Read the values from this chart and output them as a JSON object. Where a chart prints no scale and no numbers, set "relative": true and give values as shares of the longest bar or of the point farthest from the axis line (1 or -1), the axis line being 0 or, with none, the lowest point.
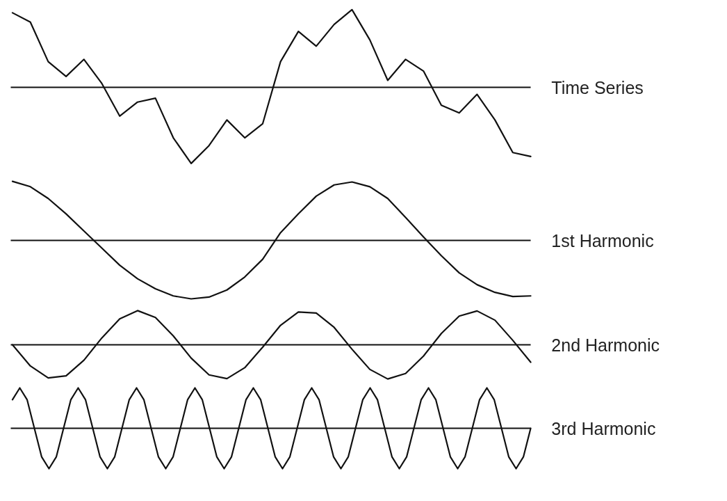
{
  "chart_data": [
    {
      "type": "line",
      "relative": true,
      "tick_labels": false,
      "categories": [
        null,
        null,
        null,
        null,
        null,
        null,
        null,
        null,
        null,
        null,
        null,
        null,
        null,
        null,
        null,
        null,
        null,
        null,
        null,
        null,
        null,
        null,
        null,
        null,
        null,
        null,
        null,
        null,
        null,
        null
      ],
      "series": [
        {
          "name": "Time Series",
          "color": "#111111",
          "values": [
            0.96,
            0.84,
            0.33,
            0.14,
            0.36,
            0.05,
            -0.37,
            -0.19,
            -0.14,
            -0.65,
            -0.98,
            -0.75,
            -0.42,
            -0.65,
            -0.47,
            0.33,
            0.72,
            0.53,
            0.81,
            1.0,
            0.61,
            0.09,
            0.36,
            0.21,
            -0.23,
            -0.33,
            -0.09,
            -0.42,
            -0.84,
            -0.89
          ]
        }
      ]
    },
    {
      "type": "line",
      "relative": true,
      "tick_labels": false,
      "categories": [
        null,
        null,
        null,
        null,
        null,
        null,
        null,
        null,
        null,
        null,
        null,
        null,
        null,
        null,
        null,
        null,
        null,
        null,
        null,
        null,
        null,
        null,
        null,
        null,
        null,
        null,
        null,
        null,
        null,
        null
      ],
      "series": [
        {
          "name": "1st Harmonic",
          "color": "#111111",
          "values": [
            1.0,
            0.91,
            0.71,
            0.45,
            0.16,
            -0.13,
            -0.42,
            -0.65,
            -0.82,
            -0.94,
            -0.99,
            -0.96,
            -0.84,
            -0.62,
            -0.32,
            0.13,
            0.45,
            0.75,
            0.94,
            0.99,
            0.91,
            0.71,
            0.39,
            0.06,
            -0.26,
            -0.55,
            -0.75,
            -0.88,
            -0.95,
            -0.94
          ]
        }
      ]
    },
    {
      "type": "line",
      "relative": true,
      "tick_labels": false,
      "categories": [
        null,
        null,
        null,
        null,
        null,
        null,
        null,
        null,
        null,
        null,
        null,
        null,
        null,
        null,
        null,
        null,
        null,
        null,
        null,
        null,
        null,
        null,
        null,
        null,
        null,
        null,
        null,
        null,
        null,
        null
      ],
      "series": [
        {
          "name": "2nd Harmonic",
          "color": "#111111",
          "values": [
            0,
            -0.62,
            -0.97,
            -0.91,
            -0.45,
            0.2,
            0.76,
            1.0,
            0.8,
            0.26,
            -0.39,
            -0.88,
            -0.99,
            -0.67,
            -0.07,
            0.57,
            0.96,
            0.93,
            0.51,
            -0.13,
            -0.72,
            -1.0,
            -0.84,
            -0.33,
            0.33,
            0.84,
            0.99,
            0.72,
            0.13,
            -0.51
          ]
        }
      ]
    },
    {
      "type": "line",
      "relative": true,
      "tick_labels": false,
      "categories": [
        null,
        null,
        null,
        null,
        null,
        null,
        null,
        null,
        null,
        null,
        null,
        null,
        null,
        null,
        null,
        null,
        null,
        null,
        null,
        null,
        null,
        null,
        null,
        null,
        null,
        null,
        null,
        null,
        null,
        null,
        null,
        null,
        null,
        null,
        null,
        null,
        null,
        null,
        null,
        null,
        null,
        null,
        null,
        null,
        null,
        null,
        null,
        null,
        null,
        null,
        null,
        null,
        null,
        null,
        null,
        null,
        null,
        null,
        null,
        null,
        null,
        null,
        null,
        null,
        null,
        null,
        null,
        null,
        null,
        null,
        null,
        null
      ],
      "series": [
        {
          "name": "3rd Harmonic",
          "color": "#111111",
          "values": [
            0.71,
            1,
            0.71,
            0,
            -0.71,
            -1,
            -0.71,
            0,
            0.71,
            1,
            0.71,
            0,
            -0.71,
            -1,
            -0.71,
            0,
            0.71,
            1,
            0.71,
            0,
            -0.71,
            -1,
            -0.71,
            0,
            0.71,
            1,
            0.71,
            0,
            -0.71,
            -1,
            -0.71,
            0,
            0.71,
            1,
            0.71,
            0,
            -0.71,
            -1,
            -0.71,
            0,
            0.71,
            1,
            0.71,
            0,
            -0.71,
            -1,
            -0.71,
            0,
            0.71,
            1,
            0.71,
            0,
            -0.71,
            -1,
            -0.71,
            0,
            0.71,
            1,
            0.71,
            0,
            -0.71,
            -1,
            -0.71,
            0,
            0.71,
            1,
            0.71,
            0,
            -0.71,
            -1,
            -0.71,
            0
          ]
        }
      ]
    }
  ]
}
